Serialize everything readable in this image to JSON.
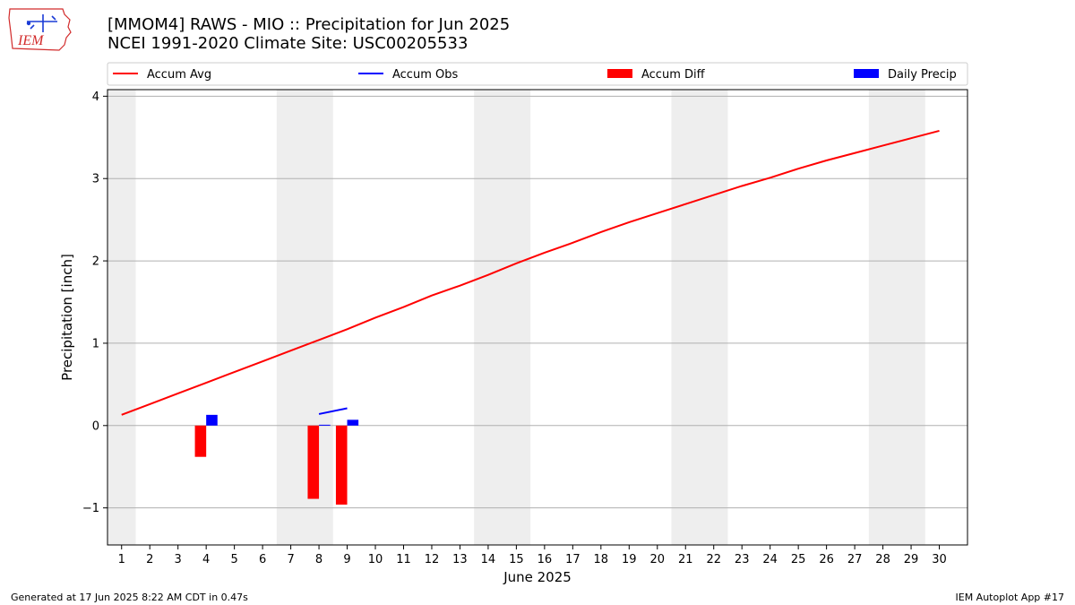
{
  "logo": {
    "text": "IEM",
    "colors": {
      "outline": "#d22b2b",
      "accent": "#1a3bd6"
    }
  },
  "header": {
    "title": "[MMOM4] RAWS - MIO :: Precipitation for Jun 2025",
    "subtitle": "NCEI 1991-2020 Climate Site: USC00205533"
  },
  "footer": {
    "left": "Generated at 17 Jun 2025 8:22 AM CDT in 0.47s",
    "right": "IEM Autoplot App #17"
  },
  "chart_data": {
    "type": "bar",
    "xlabel": "June 2025",
    "ylabel": "Precipitation [inch]",
    "xlim": [
      0.5,
      31.0
    ],
    "ylim": [
      -1.45,
      4.08
    ],
    "yticks": [
      -1,
      0,
      1,
      2,
      3,
      4
    ],
    "ytick_labels": [
      "−1",
      "0",
      "1",
      "2",
      "3",
      "4"
    ],
    "days": [
      1,
      2,
      3,
      4,
      5,
      6,
      7,
      8,
      9,
      10,
      11,
      12,
      13,
      14,
      15,
      16,
      17,
      18,
      19,
      20,
      21,
      22,
      23,
      24,
      25,
      26,
      27,
      28,
      29,
      30
    ],
    "grid": "horizontal",
    "weekend_shading": [
      [
        0.5,
        1.5
      ],
      [
        6.5,
        8.5
      ],
      [
        13.5,
        15.5
      ],
      [
        20.5,
        22.5
      ],
      [
        27.5,
        29.5
      ]
    ],
    "colors": {
      "accum_avg": "#ff0000",
      "accum_obs": "#0000ff",
      "accum_diff": "#ff0000",
      "daily_precip": "#0000ff",
      "weekend": "#eeeeee",
      "grid": "#b0b0b0"
    },
    "legend": {
      "placement": "top",
      "entries": [
        {
          "label": "Accum Avg",
          "kind": "line",
          "color": "#ff0000"
        },
        {
          "label": "Accum Obs",
          "kind": "line",
          "color": "#0000ff"
        },
        {
          "label": "Accum Diff",
          "kind": "bar",
          "color": "#ff0000"
        },
        {
          "label": "Daily Precip",
          "kind": "bar",
          "color": "#0000ff"
        }
      ]
    },
    "series": [
      {
        "name": "Accum Avg",
        "type": "line",
        "x": [
          1,
          2,
          3,
          4,
          5,
          6,
          7,
          8,
          9,
          10,
          11,
          12,
          13,
          14,
          15,
          16,
          17,
          18,
          19,
          20,
          21,
          22,
          23,
          24,
          25,
          26,
          27,
          28,
          29,
          30
        ],
        "values": [
          0.13,
          0.26,
          0.39,
          0.52,
          0.65,
          0.78,
          0.91,
          1.04,
          1.17,
          1.31,
          1.44,
          1.58,
          1.7,
          1.83,
          1.97,
          2.1,
          2.22,
          2.35,
          2.47,
          2.58,
          2.69,
          2.8,
          2.91,
          3.01,
          3.12,
          3.22,
          3.31,
          3.4,
          3.49,
          3.58
        ]
      },
      {
        "name": "Accum Obs",
        "type": "line",
        "x": [
          8,
          9
        ],
        "values": [
          0.14,
          0.21
        ]
      },
      {
        "name": "Accum Diff",
        "type": "bar",
        "x": [
          4,
          8,
          9
        ],
        "values": [
          -0.38,
          -0.89,
          -0.96
        ]
      },
      {
        "name": "Daily Precip",
        "type": "bar",
        "x": [
          4,
          8,
          9
        ],
        "values": [
          0.13,
          0.01,
          0.07
        ]
      }
    ]
  }
}
